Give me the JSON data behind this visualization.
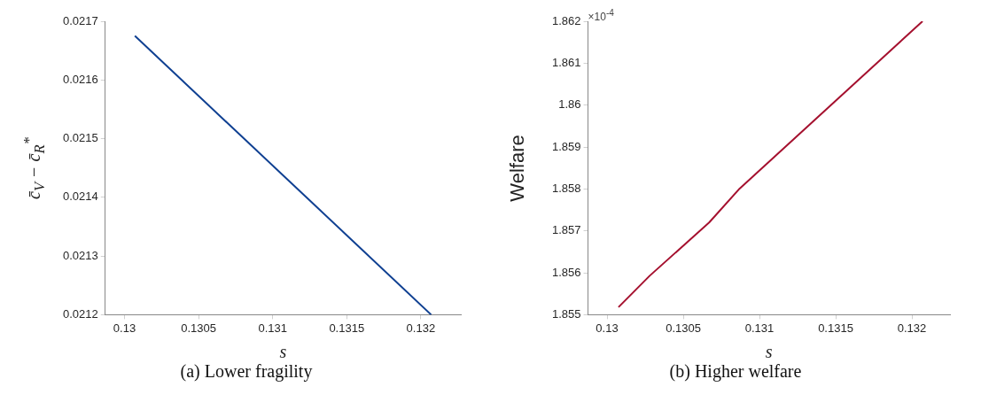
{
  "chart_data": [
    {
      "type": "line",
      "xlabel": "s",
      "ylabel": "c̄$_{V}$ − c̄$_{R}$$^{*}$",
      "annotations": [
        "(a) Lower fragility"
      ],
      "series": [
        {
          "color": "#0e3f91",
          "x": [
            0.13007,
            0.13207
          ],
          "values": [
            0.021675,
            0.0212
          ]
        }
      ],
      "xlim": [
        0.12987,
        0.13227
      ],
      "xticks": [
        0.13,
        0.1305,
        0.131,
        0.1315,
        0.132
      ],
      "ylim": [
        0.0212,
        0.0217
      ],
      "yticks": [
        0.0212,
        0.0213,
        0.0214,
        0.0215,
        0.0216,
        0.0217
      ],
      "grid": false,
      "legend": false
    },
    {
      "type": "line",
      "xlabel": "s",
      "ylabel": "Welfare",
      "annotations": [
        "×10$^{-4}$",
        "(b) Higher welfare"
      ],
      "series": [
        {
          "color": "#a5112f",
          "x": [
            0.130075,
            0.13028,
            0.13067,
            0.13087,
            0.13207
          ],
          "values": [
            1.85518,
            1.85593,
            1.8572,
            1.85801,
            1.862
          ]
        }
      ],
      "xlim": [
        0.129875,
        0.13225
      ],
      "xticks": [
        0.13,
        0.1305,
        0.131,
        0.1315,
        0.132
      ],
      "ylim": [
        1.855,
        1.862
      ],
      "yticks": [
        1.855,
        1.856,
        1.857,
        1.858,
        1.859,
        1.86,
        1.861,
        1.862
      ],
      "grid": false,
      "legend": false
    }
  ]
}
